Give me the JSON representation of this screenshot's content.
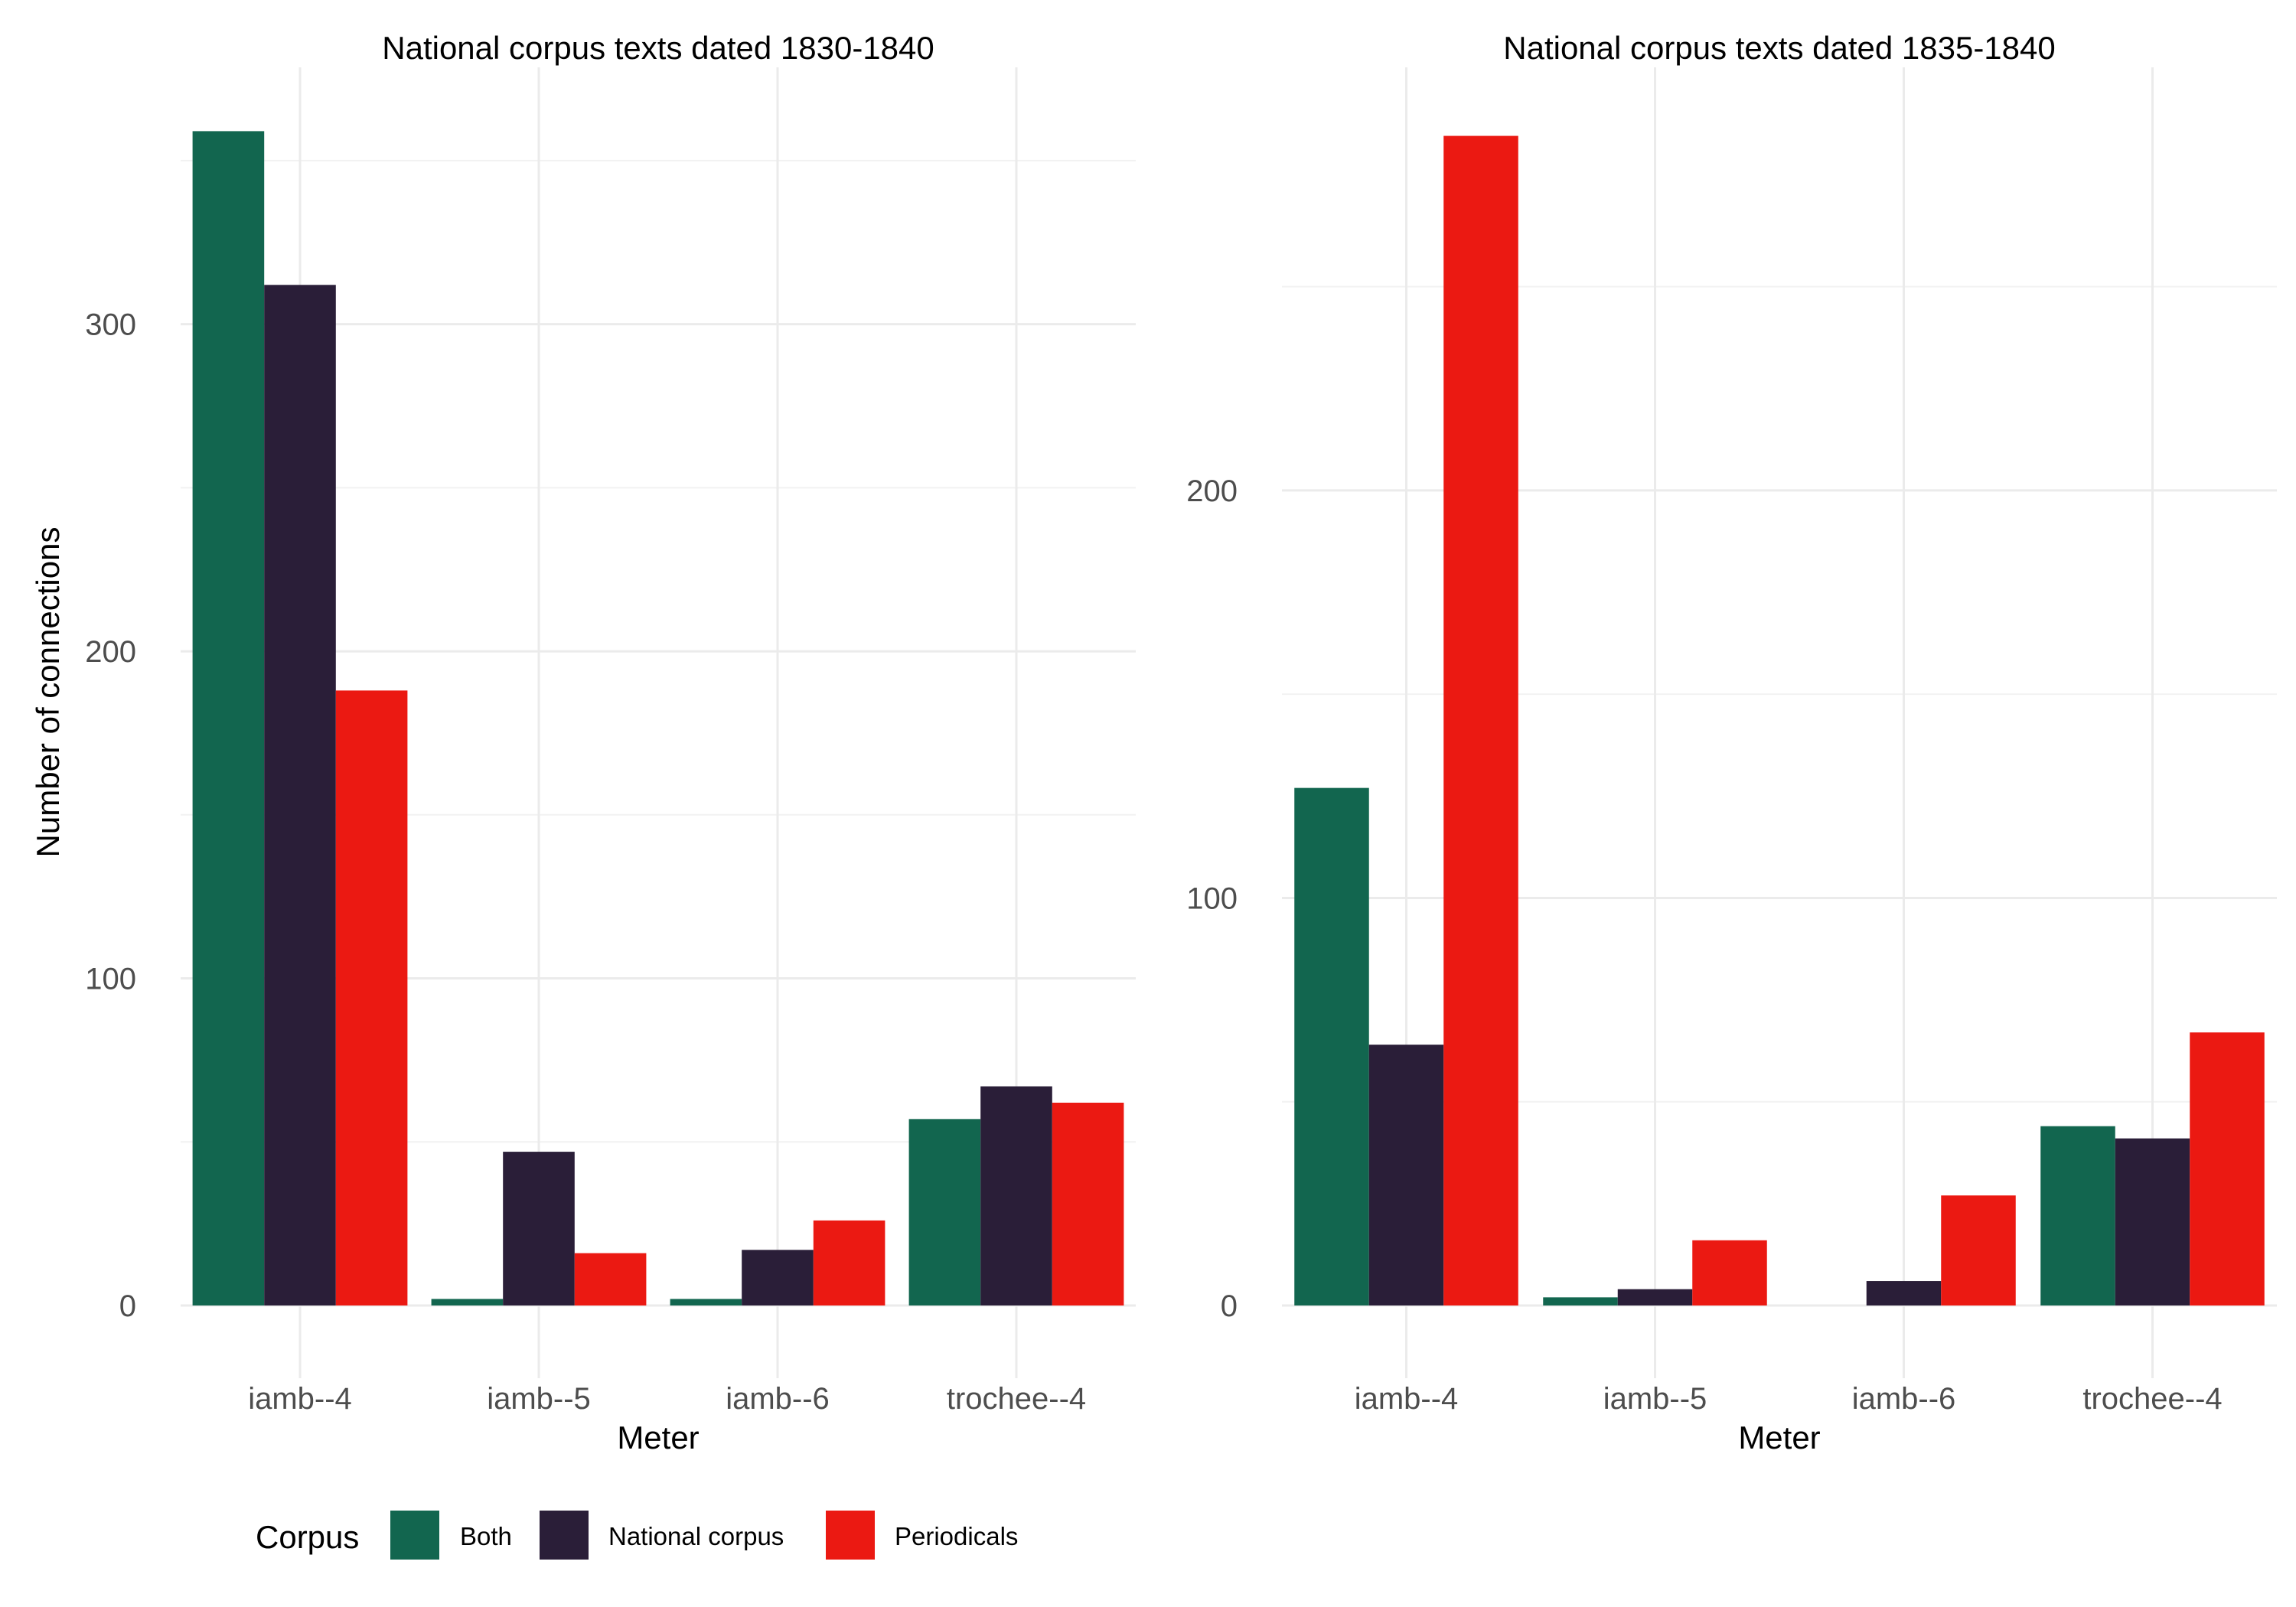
{
  "chart_data": [
    {
      "type": "bar",
      "title": "National corpus texts dated 1830-1840",
      "xlabel": "Meter",
      "ylabel": "Number of connections",
      "categories": [
        "iamb--4",
        "iamb--5",
        "iamb--6",
        "trochee--4"
      ],
      "series": [
        {
          "name": "Both",
          "values": [
            359,
            2,
            2,
            57
          ]
        },
        {
          "name": "National corpus",
          "values": [
            312,
            47,
            17,
            67
          ]
        },
        {
          "name": "Periodicals",
          "values": [
            188,
            16,
            26,
            62
          ]
        }
      ],
      "ylim": [
        0,
        375
      ],
      "yticks": [
        0,
        100,
        200,
        300
      ],
      "grid": true
    },
    {
      "type": "bar",
      "title": "National corpus texts dated 1835-1840",
      "xlabel": "Meter",
      "ylabel": "",
      "categories": [
        "iamb--4",
        "iamb--5",
        "iamb--6",
        "trochee--4"
      ],
      "series": [
        {
          "name": "Both",
          "values": [
            127,
            2,
            0,
            44
          ]
        },
        {
          "name": "National corpus",
          "values": [
            64,
            4,
            6,
            41
          ]
        },
        {
          "name": "Periodicals",
          "values": [
            287,
            16,
            27,
            67
          ]
        }
      ],
      "ylim": [
        0,
        301
      ],
      "yticks": [
        0,
        100,
        200
      ],
      "grid": true
    }
  ],
  "legend": {
    "title": "Corpus",
    "position": "bottom-left",
    "items": [
      {
        "label": "Both",
        "color": "#12664f"
      },
      {
        "label": "National corpus",
        "color": "#2a1e38"
      },
      {
        "label": "Periodicals",
        "color": "#eb1912"
      }
    ]
  }
}
